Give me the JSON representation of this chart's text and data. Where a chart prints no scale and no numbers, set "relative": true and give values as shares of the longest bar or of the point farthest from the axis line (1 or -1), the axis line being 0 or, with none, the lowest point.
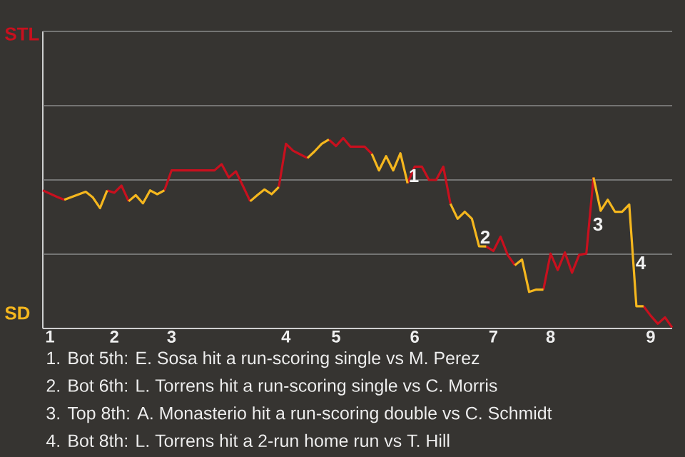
{
  "chart_data": {
    "type": "line",
    "relative": true,
    "categories": [
      null,
      "1",
      null,
      null,
      null,
      null,
      null,
      null,
      null,
      null,
      "2",
      null,
      null,
      null,
      null,
      null,
      null,
      null,
      "3",
      null,
      null,
      null,
      null,
      null,
      null,
      null,
      null,
      null,
      null,
      null,
      null,
      null,
      null,
      null,
      "4",
      null,
      null,
      null,
      null,
      null,
      null,
      "5",
      null,
      null,
      null,
      null,
      null,
      null,
      null,
      null,
      null,
      null,
      "6",
      null,
      null,
      null,
      null,
      null,
      null,
      null,
      null,
      null,
      null,
      "7",
      null,
      null,
      null,
      null,
      null,
      null,
      null,
      "8",
      null,
      null,
      null,
      null,
      null,
      null,
      null,
      null,
      null,
      null,
      null,
      null,
      null,
      "9",
      null,
      null,
      null
    ],
    "grid": false,
    "marker": "none",
    "line_style": "solid",
    "ref_lines": [
      {
        "axis": "y",
        "value": 0.39,
        "color": "#8a8a8a"
      },
      {
        "axis": "y",
        "value": 0.78,
        "color": "#8a8a8a"
      },
      {
        "axis": "y",
        "value": 1.17,
        "color": "#8a8a8a"
      },
      {
        "axis": "y",
        "value": 1.56,
        "color": "#8a8a8a"
      }
    ],
    "series": [
      {
        "color": "#c8101e",
        "values": [
          0.725,
          0.708,
          0.691,
          0.676,
          null,
          null,
          null,
          null,
          null,
          0.725,
          0.713,
          0.75,
          0.668,
          null,
          null,
          null,
          null,
          0.725,
          0.83,
          0.83,
          0.83,
          0.83,
          0.83,
          0.83,
          0.83,
          0.863,
          0.793,
          0.825,
          0.747,
          0.668,
          null,
          null,
          null,
          0.743,
          0.97,
          0.933,
          0.914,
          0.895,
          null,
          null,
          0.992,
          0.958,
          1,
          0.955,
          0.955,
          0.955,
          0.917,
          null,
          null,
          null,
          null,
          0.763,
          0.85,
          0.85,
          0.78,
          0.78,
          0.85,
          0.655,
          null,
          null,
          null,
          null,
          0.431,
          0.407,
          0.482,
          0.387,
          0.332,
          null,
          null,
          null,
          0.204,
          0.393,
          0.307,
          0.399,
          0.293,
          0.387,
          0.393,
          0.793,
          null,
          null,
          null,
          null,
          null,
          null,
          0.117,
          0.067,
          0.025,
          0.058,
          0.005
        ]
      },
      {
        "color": "#f5b71e",
        "values": [
          null,
          null,
          null,
          0.676,
          0.69,
          0.704,
          0.718,
          0.688,
          0.632,
          0.725,
          null,
          null,
          0.668,
          0.7,
          0.657,
          0.725,
          0.705,
          0.725,
          null,
          null,
          null,
          null,
          null,
          null,
          null,
          null,
          null,
          null,
          null,
          0.668,
          0.7,
          0.73,
          0.705,
          0.743,
          null,
          null,
          null,
          0.895,
          0.93,
          0.97,
          0.992,
          null,
          null,
          null,
          null,
          null,
          0.917,
          0.83,
          0.905,
          0.83,
          0.92,
          0.763,
          null,
          null,
          null,
          null,
          null,
          0.655,
          0.576,
          0.613,
          0.576,
          0.432,
          0.431,
          null,
          null,
          null,
          0.332,
          0.362,
          0.192,
          0.204,
          0.204,
          null,
          null,
          null,
          null,
          null,
          null,
          0.793,
          0.618,
          0.676,
          0.613,
          0.613,
          0.651,
          0.117,
          0.117,
          null,
          null,
          null,
          null
        ]
      }
    ],
    "annotations": [
      "1",
      "2",
      "3",
      "4",
      "STL",
      "SD",
      "1. Bot 5th: E. Sosa hit a run-scoring single vs M. Perez",
      "2. Bot 6th: L. Torrens hit a run-scoring single vs C. Morris",
      "3. Top 8th: A. Monasterio hit a run-scoring double vs C. Schmidt",
      "4. Bot 8th: L. Torrens hit a 2-run home run vs T. Hill"
    ]
  }
}
